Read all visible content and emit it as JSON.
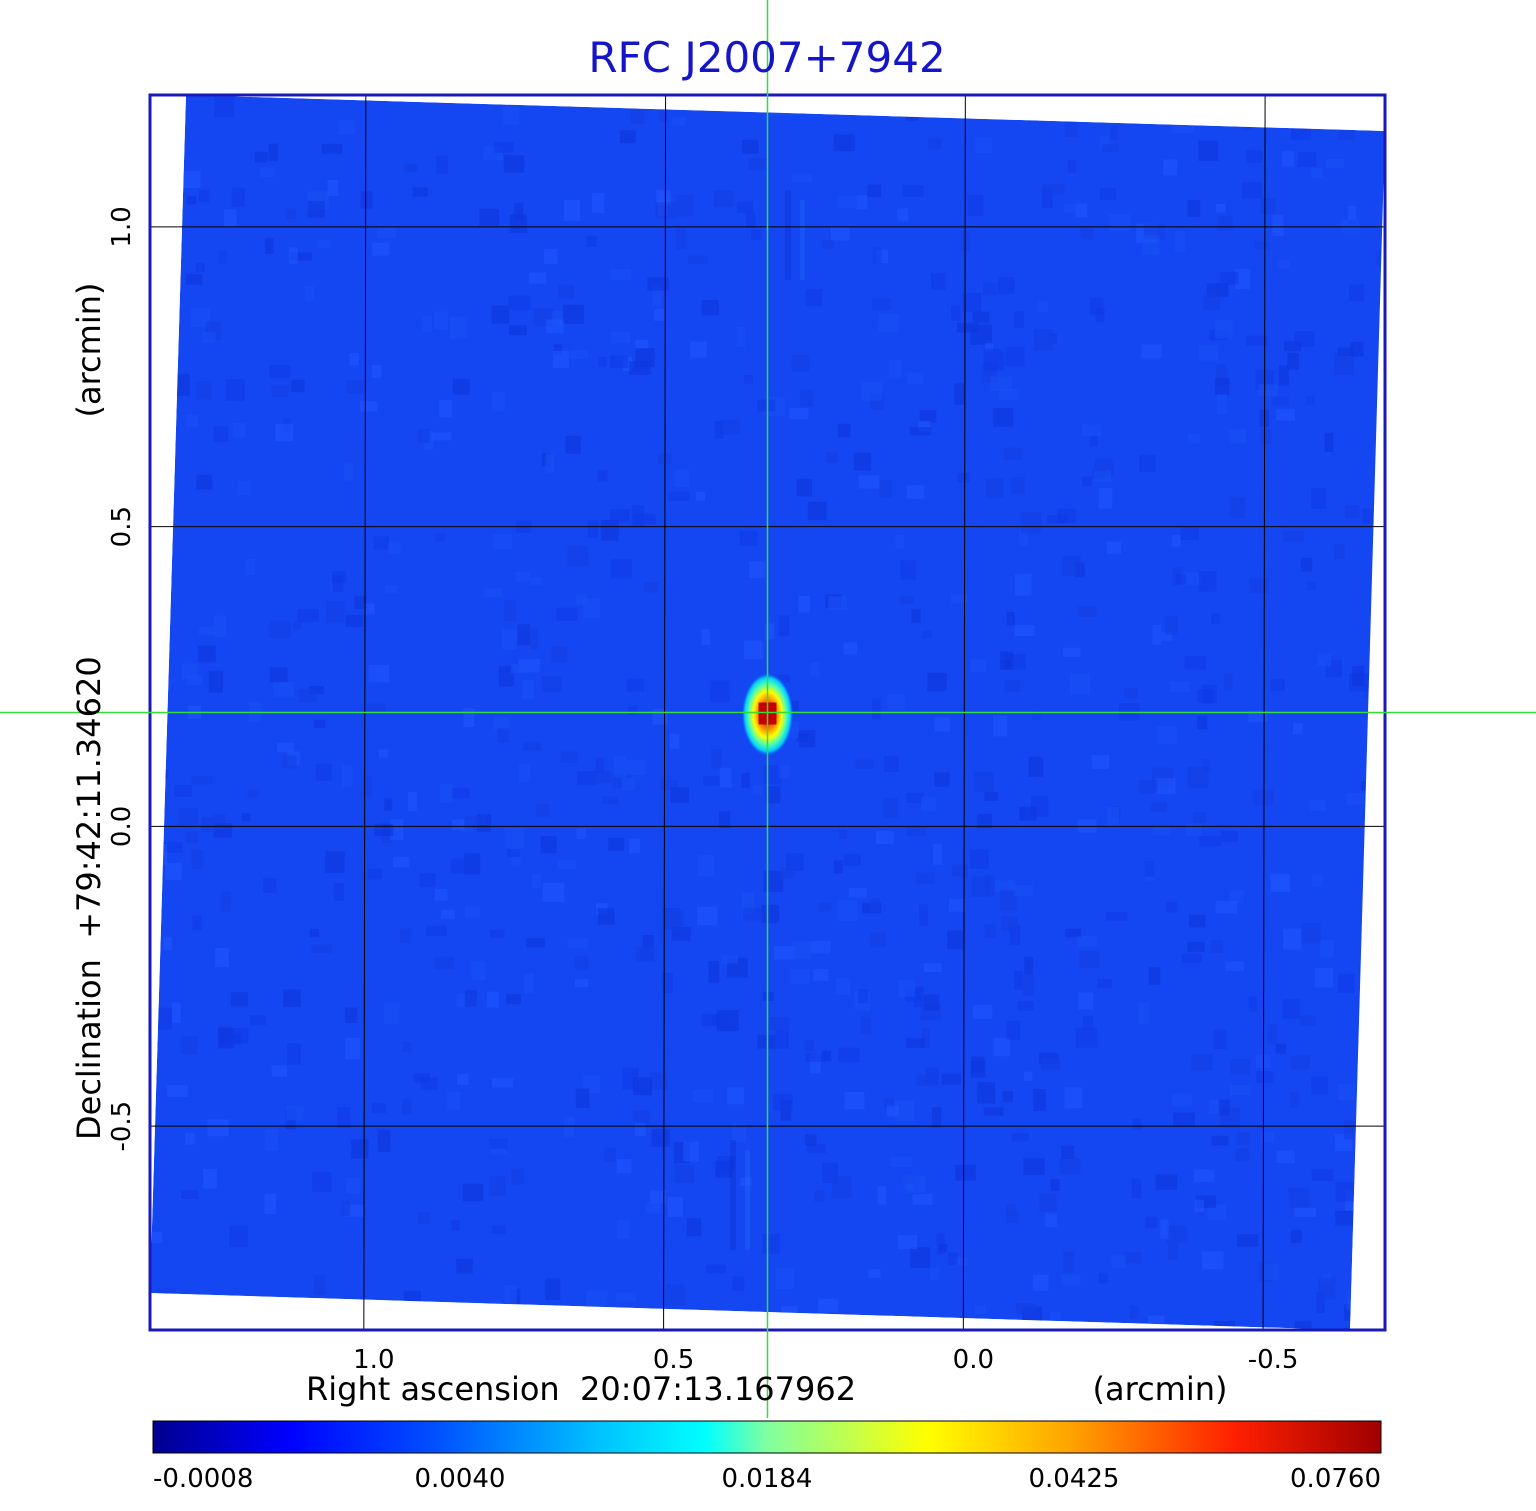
{
  "chart_data": {
    "type": "heatmap",
    "title": "RFC J2007+7942",
    "xlabel": "Right ascension  20:07:13.167962",
    "xunit": "(arcmin)",
    "ylabel": "Declination  +79:42:11.34620",
    "yunit": "(arcmin)",
    "x_ticks": [
      "1.0",
      "0.5",
      "0.0",
      "-0.5"
    ],
    "x_tick_values": [
      1.0,
      0.5,
      0.0,
      -0.5
    ],
    "y_ticks": [
      "1.0",
      "0.5",
      "0.0",
      "-0.5"
    ],
    "y_tick_values": [
      1.0,
      0.5,
      0.0,
      -0.5
    ],
    "xlim": [
      1.36,
      -0.7
    ],
    "ylim": [
      -0.84,
      1.22
    ],
    "x_inverted": true,
    "grid": true,
    "colormap": "jet",
    "colorbar_position": "bottom",
    "colorbar_ticks": [
      "-0.0008",
      "0.0040",
      "0.0184",
      "0.0425",
      "0.0760"
    ],
    "colorbar_tick_values": [
      -0.0008,
      0.004,
      0.0184,
      0.0425,
      0.076
    ],
    "source_peak": {
      "x": 0.33,
      "y": 0.19,
      "value": 0.076
    },
    "crosshair": {
      "x": 0.33,
      "y": 0.19
    },
    "background_level": 0.001
  },
  "colors": {
    "title": "#1515c8",
    "frame": "#1a1ab8",
    "grid": "#000000",
    "crosshair": "#33dd33",
    "background_map": "#1446f2"
  }
}
